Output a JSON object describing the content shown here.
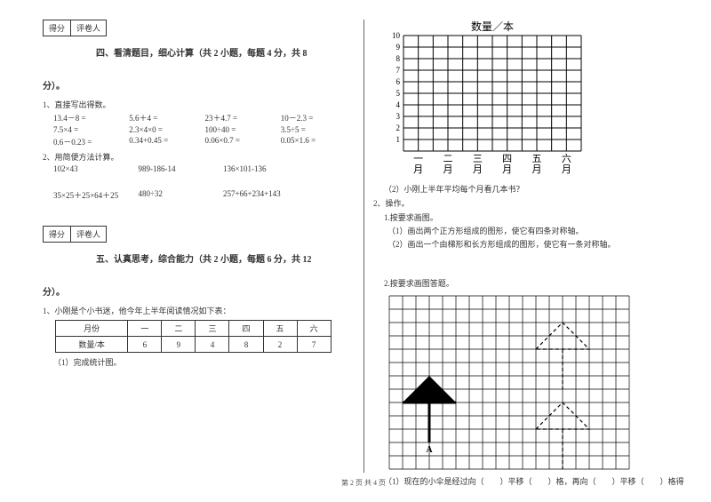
{
  "scorebox": {
    "score": "得分",
    "grader": "评卷人"
  },
  "section4": {
    "title": "四、看清题目，细心计算（共 2 小题，每题 4 分，共 8",
    "tail": "分）。",
    "q1": "1、直接写出得数。",
    "row1": [
      "13.4－8 =",
      "5.6＋4 =",
      "23＋4.7 =",
      "10－2.3 ="
    ],
    "row2": [
      "7.5×4 =",
      "2.3×4×0 =",
      "100÷40 =",
      "3.5÷5 ="
    ],
    "row3": [
      "0.6－0.23 =",
      "0.34+0.45 =",
      "0.06×0.7 =",
      "0.05×1.6 ="
    ],
    "q2": "2、用简便方法计算。",
    "row4": [
      "102×43",
      "989-186-14",
      "136×101-136"
    ],
    "row5": [
      "35×25＋25×64＋25",
      "480÷32",
      "257+66+234+143"
    ]
  },
  "section5": {
    "title": "五、认真思考，综合能力（共 2 小题，每题 6 分，共 12",
    "tail": "分）。",
    "q1": "1、小刚是个小书迷，他今年上半年阅读情况如下表：",
    "table": {
      "headers": [
        "月份",
        "一",
        "二",
        "三",
        "四",
        "五",
        "六"
      ],
      "row_label": "数量/本",
      "values": [
        "6",
        "9",
        "4",
        "8",
        "2",
        "7"
      ]
    },
    "sub1": "（1）完成统计图。"
  },
  "right": {
    "chart": {
      "title": "数量／本",
      "y_ticks": [
        "10",
        "9",
        "8",
        "7",
        "6",
        "5",
        "4",
        "3",
        "2",
        "1"
      ],
      "x_labels": [
        "一月",
        "二月",
        "三月",
        "四月",
        "五月",
        "六月"
      ],
      "rows": 10,
      "cols": 12,
      "bg": "#ffffff",
      "grid_color": "#000000",
      "title_fontsize": 12,
      "tick_fontsize": 9
    },
    "sub2": "（2）小刚上半年平均每个月看几本书？",
    "q2": "2、操作。",
    "q2_1": "1.按要求画图。",
    "q2_1a": "（1）画出两个正方形组成的图形，使它有四条对称轴。",
    "q2_1b": "（2）画出一个由梯形和长方形组成的图形，使它有一条对称轴。",
    "q2_2": "2.按要求画图答题。",
    "grid": {
      "rows": 13,
      "cols": 18,
      "cell": 15,
      "grid_color": "#000000",
      "umbrella": {
        "apex_col": 3,
        "apex_row": 6,
        "base_left_col": 1,
        "base_right_col": 5,
        "base_row": 8,
        "stem_col": 3,
        "stem_bottom_row": 11,
        "label": "A",
        "fill": "#000000"
      },
      "ghost1": {
        "apex_col": 13,
        "base_row": 4,
        "width": 4
      },
      "ghost2": {
        "apex_col": 13,
        "base_row": 10,
        "width": 4
      }
    },
    "q2_2a": "（1）现在的小伞是经过向（　　）平移（　　）格，再向（　　）平移（　　）格得"
  },
  "footer": "第 2 页 共 4 页"
}
